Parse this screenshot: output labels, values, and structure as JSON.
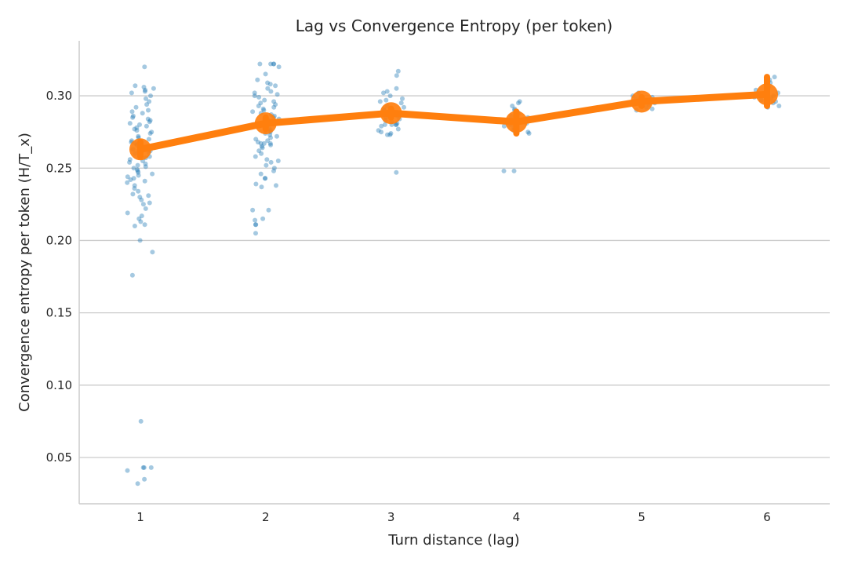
{
  "chart_data": {
    "type": "scatter",
    "title": "Lag vs Convergence Entropy (per token)",
    "xlabel": "Turn distance (lag)",
    "ylabel": "Convergence entropy per token (H/T_x)",
    "x_ticks": [
      "1",
      "2",
      "3",
      "4",
      "5",
      "6"
    ],
    "y_ticks": [
      "0.05",
      "0.10",
      "0.15",
      "0.20",
      "0.25",
      "0.30"
    ],
    "ylim": [
      0.018,
      0.338
    ],
    "grid": "horizontal",
    "colors": {
      "points": "#1f77b4",
      "mean_line": "#ff7f0e"
    },
    "series": [
      {
        "kind": "strip",
        "groups": [
          {
            "lag": 1,
            "values": [
              0.32,
              0.307,
              0.306,
              0.305,
              0.304,
              0.303,
              0.302,
              0.3,
              0.298,
              0.296,
              0.294,
              0.292,
              0.29,
              0.289,
              0.288,
              0.286,
              0.285,
              0.284,
              0.283,
              0.282,
              0.281,
              0.28,
              0.279,
              0.278,
              0.277,
              0.276,
              0.275,
              0.274,
              0.272,
              0.271,
              0.27,
              0.269,
              0.268,
              0.267,
              0.266,
              0.266,
              0.265,
              0.264,
              0.264,
              0.263,
              0.262,
              0.262,
              0.261,
              0.26,
              0.259,
              0.258,
              0.257,
              0.256,
              0.255,
              0.254,
              0.253,
              0.252,
              0.251,
              0.25,
              0.249,
              0.248,
              0.247,
              0.246,
              0.245,
              0.244,
              0.243,
              0.242,
              0.241,
              0.24,
              0.238,
              0.236,
              0.234,
              0.232,
              0.231,
              0.23,
              0.228,
              0.226,
              0.225,
              0.222,
              0.219,
              0.217,
              0.215,
              0.213,
              0.211,
              0.21,
              0.2,
              0.192,
              0.176,
              0.075,
              0.043,
              0.043,
              0.041,
              0.043,
              0.035,
              0.032
            ]
          },
          {
            "lag": 2,
            "values": [
              0.322,
              0.322,
              0.322,
              0.322,
              0.32,
              0.315,
              0.311,
              0.309,
              0.308,
              0.307,
              0.305,
              0.303,
              0.302,
              0.301,
              0.3,
              0.299,
              0.297,
              0.296,
              0.295,
              0.294,
              0.293,
              0.292,
              0.291,
              0.29,
              0.289,
              0.288,
              0.287,
              0.286,
              0.285,
              0.284,
              0.283,
              0.282,
              0.281,
              0.28,
              0.279,
              0.278,
              0.277,
              0.276,
              0.275,
              0.274,
              0.273,
              0.272,
              0.271,
              0.27,
              0.269,
              0.268,
              0.267,
              0.267,
              0.267,
              0.266,
              0.265,
              0.264,
              0.262,
              0.26,
              0.258,
              0.256,
              0.255,
              0.254,
              0.252,
              0.25,
              0.248,
              0.246,
              0.243,
              0.243,
              0.239,
              0.238,
              0.237,
              0.221,
              0.221,
              0.215,
              0.214,
              0.211,
              0.211,
              0.205
            ]
          },
          {
            "lag": 3,
            "values": [
              0.317,
              0.314,
              0.305,
              0.303,
              0.302,
              0.3,
              0.298,
              0.297,
              0.296,
              0.295,
              0.293,
              0.292,
              0.291,
              0.29,
              0.289,
              0.288,
              0.287,
              0.286,
              0.285,
              0.284,
              0.283,
              0.282,
              0.281,
              0.28,
              0.28,
              0.28,
              0.28,
              0.279,
              0.277,
              0.276,
              0.275,
              0.274,
              0.273,
              0.273,
              0.247
            ]
          },
          {
            "lag": 4,
            "values": [
              0.296,
              0.295,
              0.293,
              0.291,
              0.29,
              0.288,
              0.286,
              0.285,
              0.284,
              0.283,
              0.282,
              0.281,
              0.28,
              0.279,
              0.278,
              0.276,
              0.275,
              0.274,
              0.248,
              0.248
            ]
          },
          {
            "lag": 5,
            "values": [
              0.302,
              0.3,
              0.299,
              0.298,
              0.297,
              0.296,
              0.295,
              0.294,
              0.293,
              0.292,
              0.291,
              0.29
            ]
          },
          {
            "lag": 6,
            "values": [
              0.313,
              0.311,
              0.309,
              0.306,
              0.304,
              0.302,
              0.3,
              0.299,
              0.298,
              0.297,
              0.296,
              0.295,
              0.293,
              0.292
            ]
          }
        ]
      },
      {
        "kind": "mean",
        "x": [
          1,
          2,
          3,
          4,
          5,
          6
        ],
        "values": [
          0.263,
          0.281,
          0.288,
          0.282,
          0.296,
          0.301
        ],
        "ci_low": [
          0.258,
          0.277,
          0.285,
          0.274,
          0.293,
          0.293
        ],
        "ci_high": [
          0.268,
          0.285,
          0.291,
          0.289,
          0.299,
          0.313
        ]
      }
    ]
  }
}
